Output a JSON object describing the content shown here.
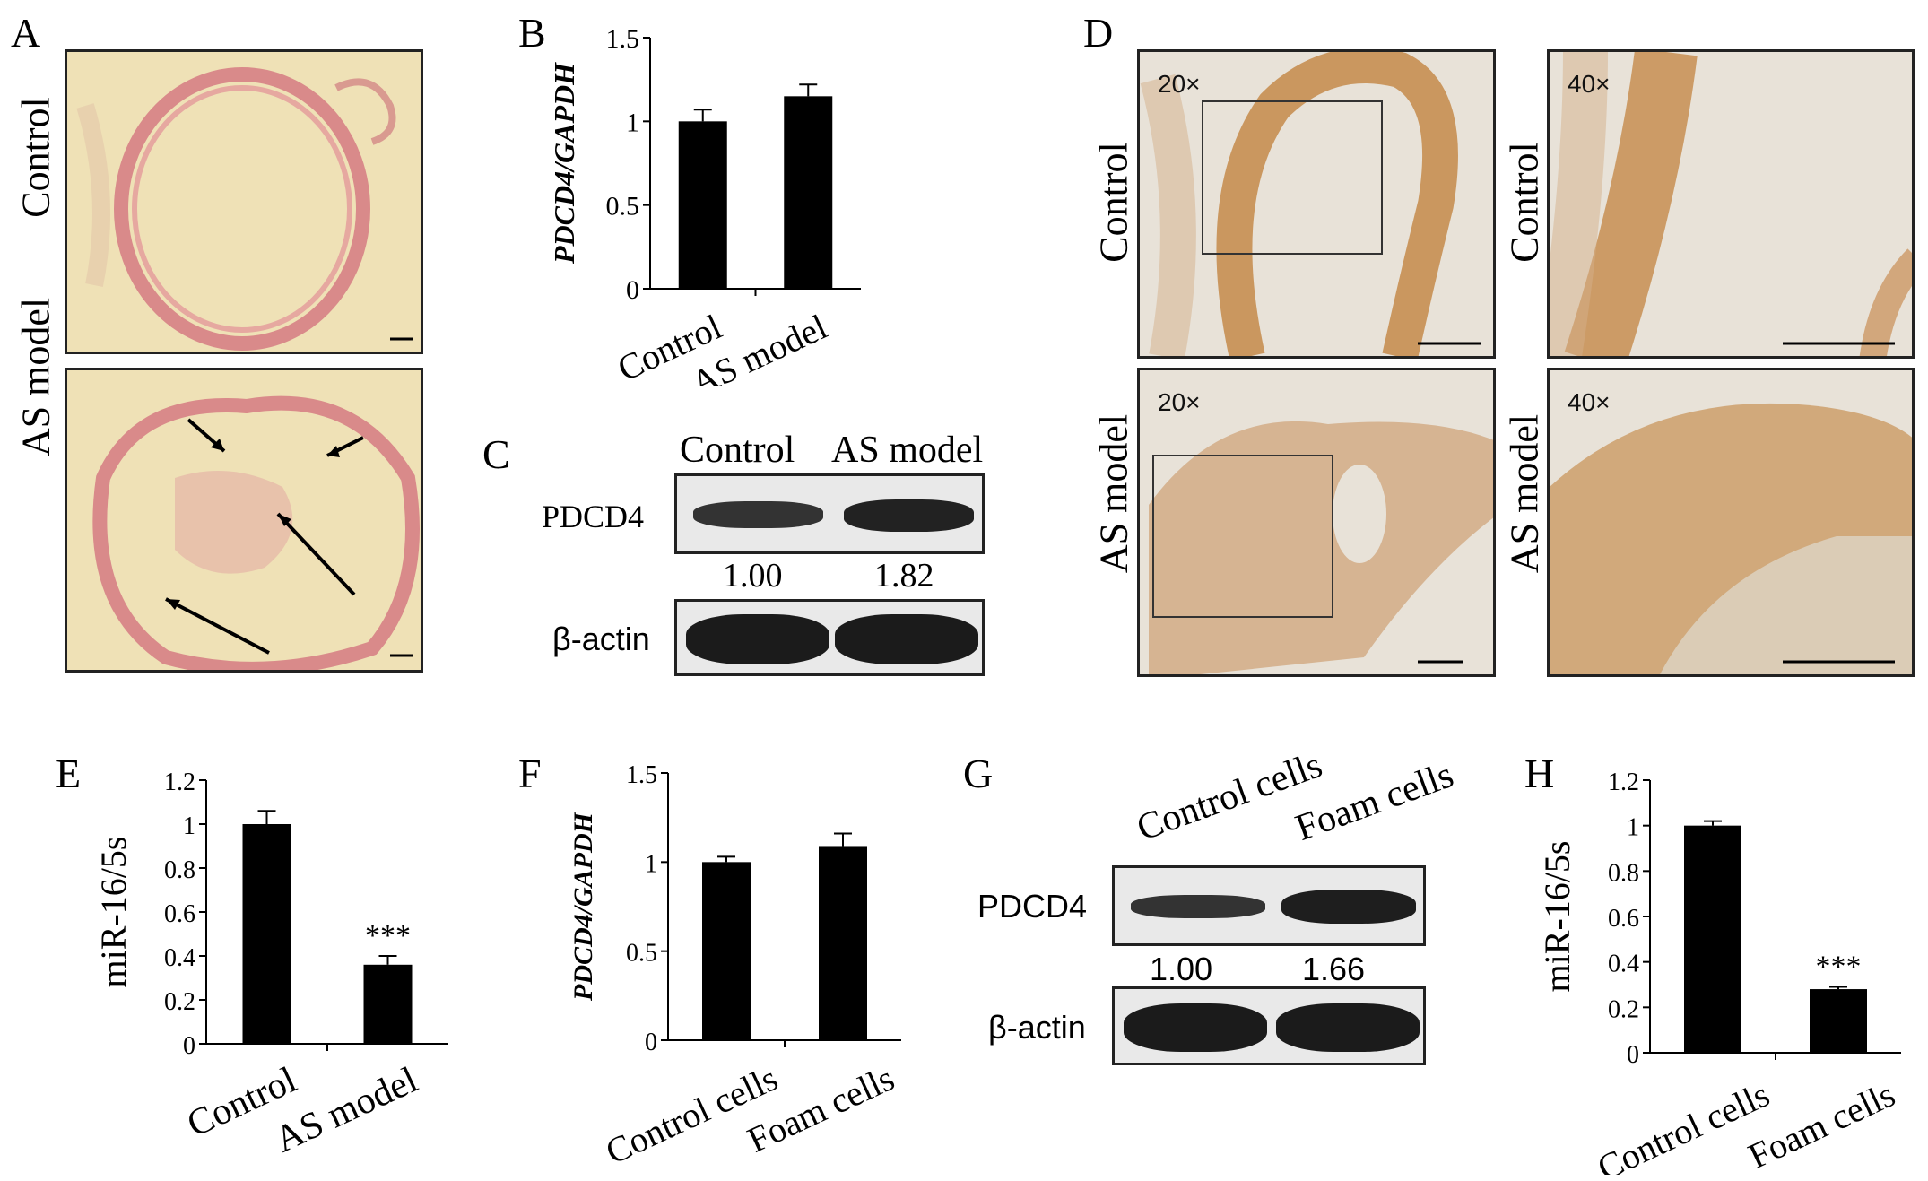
{
  "panel_letters": {
    "A": "A",
    "B": "B",
    "C": "C",
    "D": "D",
    "E": "E",
    "F": "F",
    "G": "G",
    "H": "H"
  },
  "panel_A": {
    "row_labels": [
      "Control",
      "AS model"
    ]
  },
  "panel_C": {
    "lanes": [
      "Control",
      "AS model"
    ],
    "proteins": [
      "PDCD4",
      "β-actin"
    ],
    "quant": [
      "1.00",
      "1.82"
    ]
  },
  "panel_D": {
    "row_labels": [
      "Control",
      "AS model"
    ],
    "magnifications": [
      "20×",
      "40×"
    ]
  },
  "panel_G": {
    "lanes": [
      "Control cells",
      "Foam cells"
    ],
    "proteins": [
      "PDCD4",
      "β-actin"
    ],
    "quant": [
      "1.00",
      "1.66"
    ]
  },
  "chart_data": [
    {
      "panel": "B",
      "type": "bar",
      "categories": [
        "Control",
        "AS model"
      ],
      "values": [
        1.0,
        1.15
      ],
      "errors": [
        0.07,
        0.07
      ],
      "ylabel": "PDCD4/GAPDH",
      "ylim": [
        0,
        1.5
      ],
      "yticks": [
        "0",
        "0.5",
        "1",
        "1.5"
      ],
      "annotations": [
        "",
        ""
      ]
    },
    {
      "panel": "E",
      "type": "bar",
      "categories": [
        "Control",
        "AS model"
      ],
      "values": [
        1.0,
        0.36
      ],
      "errors": [
        0.06,
        0.04
      ],
      "ylabel": "miR-16/5s",
      "ylim": [
        0,
        1.2
      ],
      "yticks": [
        "0",
        "0.2",
        "0.4",
        "0.6",
        "0.8",
        "1",
        "1.2"
      ],
      "annotations": [
        "",
        "***"
      ]
    },
    {
      "panel": "F",
      "type": "bar",
      "categories": [
        "Control cells",
        "Foam cells"
      ],
      "values": [
        1.0,
        1.09
      ],
      "errors": [
        0.03,
        0.07
      ],
      "ylabel": "PDCD4/GAPDH",
      "ylim": [
        0,
        1.5
      ],
      "yticks": [
        "0",
        "0.5",
        "1",
        "1.5"
      ],
      "annotations": [
        "",
        ""
      ]
    },
    {
      "panel": "H",
      "type": "bar",
      "categories": [
        "Control cells",
        "Foam cells"
      ],
      "values": [
        1.0,
        0.28
      ],
      "errors": [
        0.02,
        0.01
      ],
      "ylabel": "miR-16/5s",
      "ylim": [
        0,
        1.2
      ],
      "yticks": [
        "0",
        "0.2",
        "0.4",
        "0.6",
        "0.8",
        "1",
        "1.2"
      ],
      "annotations": [
        "",
        "***"
      ]
    }
  ]
}
